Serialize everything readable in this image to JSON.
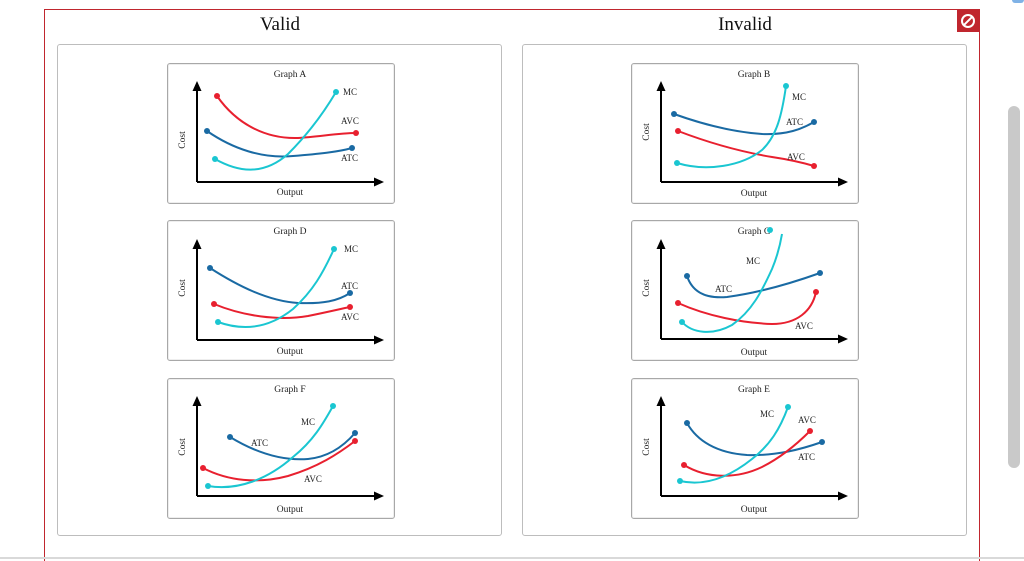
{
  "columns": {
    "valid_title": "Valid",
    "invalid_title": "Invalid"
  },
  "status_icon": {
    "name": "prohibited-icon",
    "color": "#c0262e"
  },
  "colors": {
    "mc": "#1ac6d1",
    "atc": "#1a6aa3",
    "avc": "#e8202f",
    "frame": "#c0262e"
  },
  "axis": {
    "y_label": "Cost",
    "x_label": "Output"
  },
  "graphs": {
    "A": {
      "title": "Graph A",
      "labels": {
        "mc": "MC",
        "avc": "AVC",
        "atc": "ATC"
      }
    },
    "D": {
      "title": "Graph D",
      "labels": {
        "mc": "MC",
        "atc": "ATC",
        "avc": "AVC"
      }
    },
    "F": {
      "title": "Graph F",
      "labels": {
        "mc": "MC",
        "atc": "ATC",
        "avc": "AVC"
      }
    },
    "B": {
      "title": "Graph B",
      "labels": {
        "mc": "MC",
        "atc": "ATC",
        "avc": "AVC"
      }
    },
    "C": {
      "title": "Graph C",
      "labels": {
        "mc": "MC",
        "atc": "ATC",
        "avc": "AVC"
      }
    },
    "E": {
      "title": "Graph E",
      "labels": {
        "mc": "MC",
        "avc": "AVC",
        "atc": "ATC"
      }
    }
  }
}
